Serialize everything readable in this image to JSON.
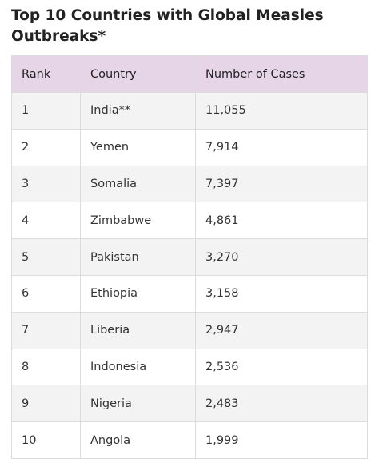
{
  "title": "Top 10 Countries with Global Measles Outbreaks*",
  "table": {
    "headers": [
      "Rank",
      "Country",
      "Number of Cases"
    ],
    "rows": [
      {
        "rank": "1",
        "country": "India**",
        "cases": "11,055"
      },
      {
        "rank": "2",
        "country": "Yemen",
        "cases": "7,914"
      },
      {
        "rank": "3",
        "country": "Somalia",
        "cases": "7,397"
      },
      {
        "rank": "4",
        "country": "Zimbabwe",
        "cases": "4,861"
      },
      {
        "rank": "5",
        "country": "Pakistan",
        "cases": "3,270"
      },
      {
        "rank": "6",
        "country": "Ethiopia",
        "cases": "3,158"
      },
      {
        "rank": "7",
        "country": "Liberia",
        "cases": "2,947"
      },
      {
        "rank": "8",
        "country": "Indonesia",
        "cases": "2,536"
      },
      {
        "rank": "9",
        "country": "Nigeria",
        "cases": "2,483"
      },
      {
        "rank": "10",
        "country": "Angola",
        "cases": "1,999"
      }
    ]
  },
  "colors": {
    "header_background": "#e6d4e7",
    "stripe_background": "#f3f3f3",
    "border": "#dcdcdc"
  }
}
